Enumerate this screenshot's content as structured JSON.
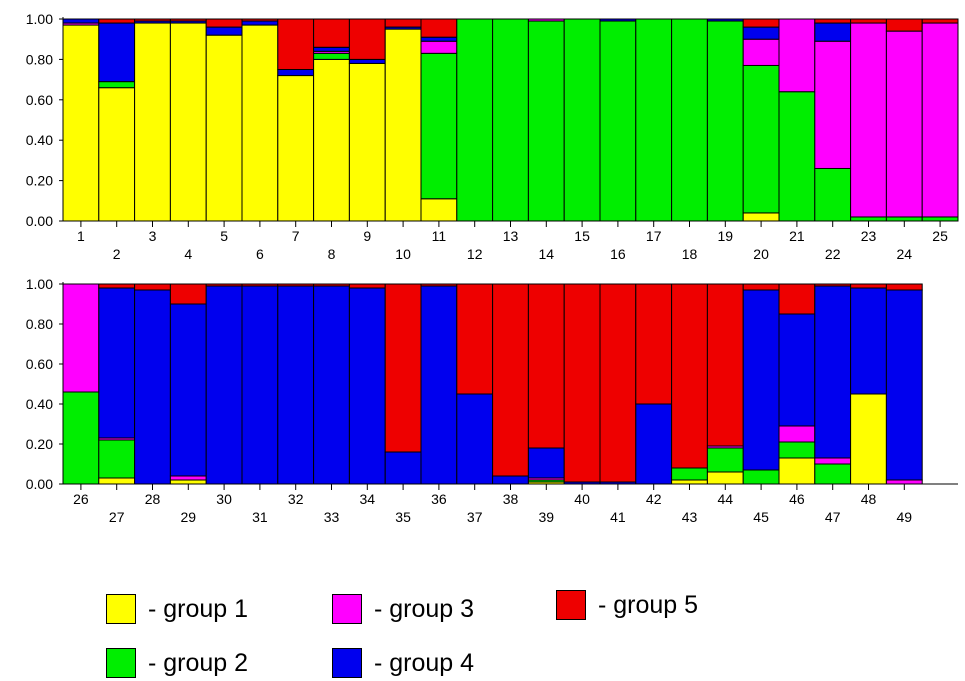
{
  "chart_data": [
    {
      "type": "bar",
      "stacked": true,
      "categories": [
        "1",
        "2",
        "3",
        "4",
        "5",
        "6",
        "7",
        "8",
        "9",
        "10",
        "11",
        "12",
        "13",
        "14",
        "15",
        "16",
        "17",
        "18",
        "19",
        "20",
        "21",
        "22",
        "23",
        "24",
        "25"
      ],
      "series": [
        {
          "name": "group 1",
          "color": "#ffff00",
          "values": [
            0.97,
            0.66,
            0.98,
            0.98,
            0.92,
            0.97,
            0.72,
            0.8,
            0.78,
            0.95,
            0.11,
            0,
            0,
            0,
            0,
            0,
            0,
            0,
            0,
            0.04,
            0,
            0,
            0,
            0,
            0
          ]
        },
        {
          "name": "group 2",
          "color": "#00ee00",
          "values": [
            0,
            0.03,
            0,
            0,
            0,
            0,
            0,
            0.03,
            0,
            0,
            0.72,
            1.0,
            1.0,
            0.99,
            1.0,
            0.99,
            1.0,
            1.0,
            0.99,
            0.73,
            0.64,
            0.26,
            0.02,
            0.02,
            0.02
          ]
        },
        {
          "name": "group 3",
          "color": "#ff00ff",
          "values": [
            0.01,
            0,
            0,
            0,
            0,
            0,
            0,
            0.01,
            0,
            0,
            0.06,
            0,
            0,
            0.01,
            0,
            0,
            0,
            0,
            0,
            0.13,
            0.36,
            0.63,
            0.96,
            0.92,
            0.96
          ]
        },
        {
          "name": "group 4",
          "color": "#0000ee",
          "values": [
            0.02,
            0.29,
            0.01,
            0.01,
            0.04,
            0.02,
            0.03,
            0.02,
            0.02,
            0.01,
            0.02,
            0,
            0,
            0,
            0,
            0.01,
            0,
            0,
            0.01,
            0.06,
            0,
            0.09,
            0,
            0,
            0
          ]
        },
        {
          "name": "group 5",
          "color": "#ee0000",
          "values": [
            0,
            0.02,
            0.01,
            0.01,
            0.04,
            0.01,
            0.25,
            0.14,
            0.2,
            0.04,
            0.09,
            0,
            0,
            0,
            0,
            0,
            0,
            0,
            0,
            0.04,
            0,
            0.02,
            0.02,
            0.06,
            0.02
          ]
        }
      ],
      "y_ticks": [
        "0.00",
        "0.20",
        "0.40",
        "0.60",
        "0.80",
        "1.00"
      ],
      "ylim": [
        0,
        1
      ]
    },
    {
      "type": "bar",
      "stacked": true,
      "categories": [
        "26",
        "27",
        "28",
        "29",
        "30",
        "31",
        "32",
        "33",
        "34",
        "35",
        "36",
        "37",
        "38",
        "39",
        "40",
        "41",
        "42",
        "43",
        "44",
        "45",
        "46",
        "47",
        "48",
        "49"
      ],
      "series": [
        {
          "name": "group 1",
          "color": "#ffff00",
          "values": [
            0,
            0.03,
            0,
            0.02,
            0,
            0,
            0,
            0,
            0,
            0,
            0,
            0,
            0,
            0.01,
            0,
            0,
            0,
            0.02,
            0.06,
            0,
            0.13,
            0,
            0.45,
            0
          ]
        },
        {
          "name": "group 2",
          "color": "#00ee00",
          "values": [
            0.46,
            0.19,
            0,
            0,
            0,
            0,
            0,
            0,
            0,
            0,
            0,
            0,
            0,
            0.01,
            0,
            0,
            0,
            0.06,
            0.12,
            0.07,
            0.08,
            0.1,
            0,
            0
          ]
        },
        {
          "name": "group 3",
          "color": "#ff00ff",
          "values": [
            0.54,
            0.01,
            0,
            0.02,
            0,
            0,
            0,
            0,
            0,
            0,
            0,
            0,
            0,
            0.01,
            0,
            0,
            0,
            0,
            0.01,
            0,
            0.08,
            0.03,
            0,
            0.02
          ]
        },
        {
          "name": "group 4",
          "color": "#0000ee",
          "values": [
            0,
            0.75,
            0.97,
            0.86,
            0.99,
            0.99,
            0.99,
            0.99,
            0.98,
            0.16,
            0.99,
            0.45,
            0.04,
            0.15,
            0.01,
            0.01,
            0.4,
            0,
            0,
            0.9,
            0.56,
            0.86,
            0.53,
            0.95
          ]
        },
        {
          "name": "group 5",
          "color": "#ee0000",
          "values": [
            0,
            0.02,
            0.03,
            0.1,
            0.01,
            0.01,
            0.01,
            0.01,
            0.02,
            0.84,
            0.01,
            0.55,
            0.96,
            0.82,
            0.99,
            0.99,
            0.6,
            0.92,
            0.81,
            0.03,
            0.15,
            0.01,
            0.02,
            0.03
          ]
        }
      ],
      "y_ticks": [
        "0.00",
        "0.20",
        "0.40",
        "0.60",
        "0.80",
        "1.00"
      ],
      "ylim": [
        0,
        1
      ]
    }
  ],
  "legend": [
    {
      "label": "- group 1",
      "color": "#ffff00"
    },
    {
      "label": "- group 2",
      "color": "#00ee00"
    },
    {
      "label": "- group 3",
      "color": "#ff00ff"
    },
    {
      "label": "- group 4",
      "color": "#0000ee"
    },
    {
      "label": "- group 5",
      "color": "#ee0000"
    }
  ]
}
